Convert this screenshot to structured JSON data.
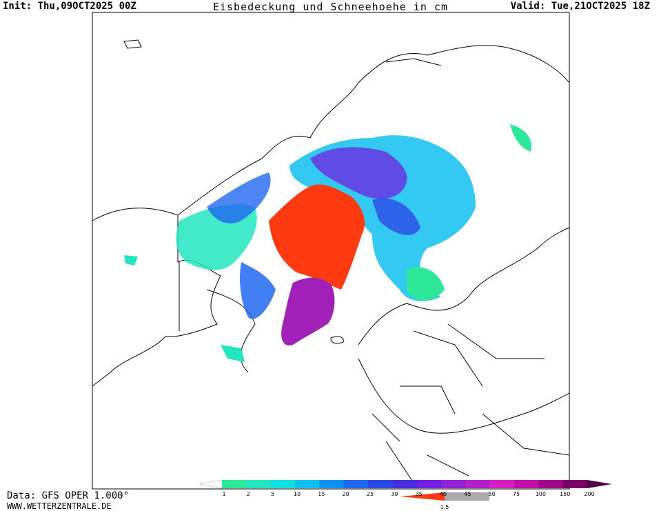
{
  "header": {
    "init": "Init: Thu,09OCT2025 00Z",
    "title": "Eisbedeckung und Schneehoehe in cm",
    "valid": "Valid: Tue,21OCT2025 18Z"
  },
  "footer": {
    "source": "Data: GFS OPER 1.000°",
    "site": "WWW.WETTERZENTRALE.DE"
  },
  "legend": {
    "levels": [
      1,
      2,
      5,
      10,
      15,
      20,
      25,
      30,
      35,
      40,
      45,
      50,
      75,
      100,
      150,
      200
    ],
    "colors": [
      "#2ee89a",
      "#22e6bf",
      "#10e0e0",
      "#10c0f0",
      "#1090f0",
      "#2068f0",
      "#2c48e6",
      "#4a2ce0",
      "#7020e0",
      "#9420d8",
      "#b420c8",
      "#d420c0",
      "#c010a8",
      "#a00888",
      "#7a0068",
      "#500048"
    ],
    "ice_label": 1.5
  }
}
